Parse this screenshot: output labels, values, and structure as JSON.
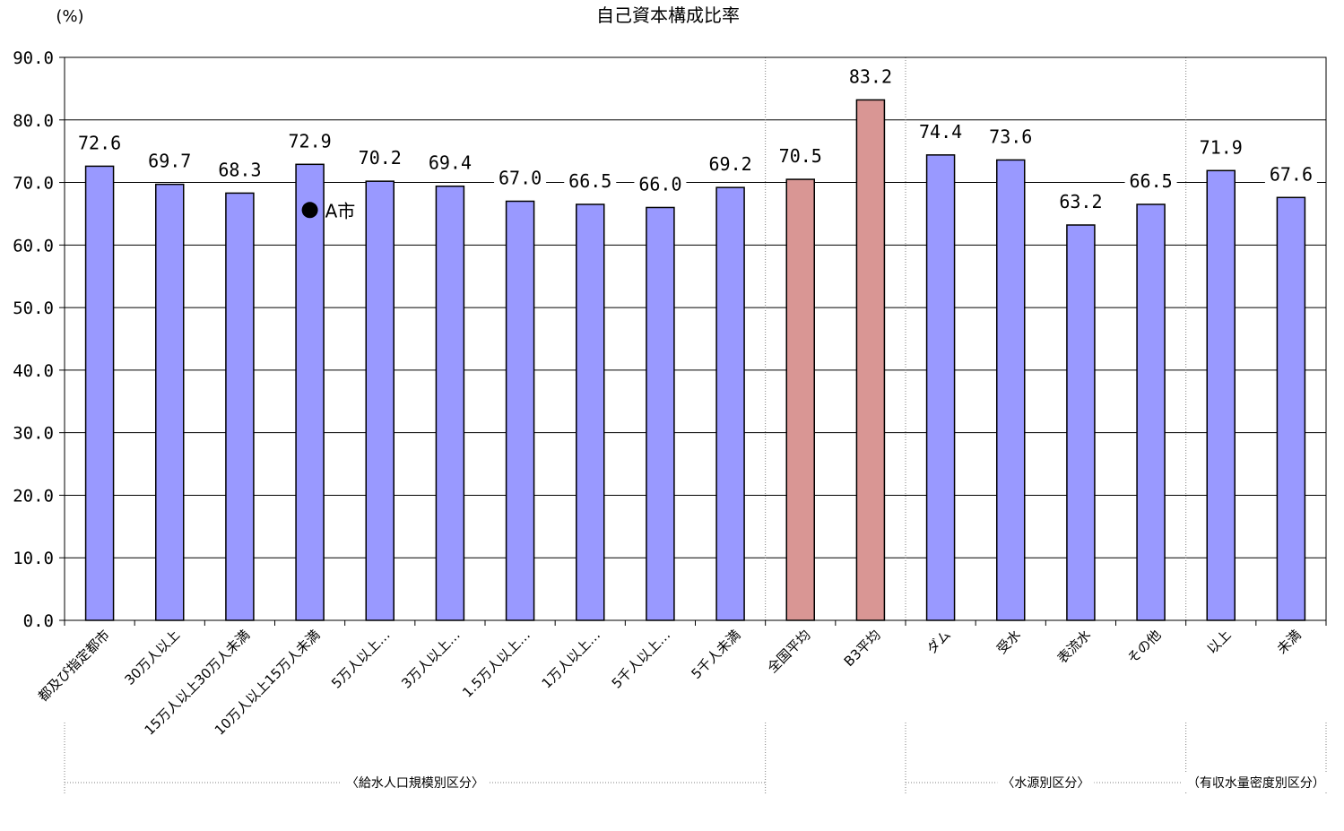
{
  "chart_data": {
    "type": "bar",
    "title": "自己資本構成比率",
    "ylabel": "(%)",
    "ylim": [
      0,
      90
    ],
    "yticks": [
      "0.0",
      "10.0",
      "20.0",
      "30.0",
      "40.0",
      "50.0",
      "60.0",
      "70.0",
      "80.0",
      "90.0"
    ],
    "grid": true,
    "categories": [
      "都及び指定都市",
      "30万人以上",
      "15万人以上30万人未満",
      "10万人以上15万人未満",
      "5万人以上…",
      "3万人以上…",
      "1.5万人以上…",
      "1万人以上…",
      "5千人以上…",
      "5千人未満",
      "全国平均",
      "B3平均",
      "ダム",
      "受水",
      "表流水",
      "その他",
      "以上",
      "未満"
    ],
    "values": [
      72.6,
      69.7,
      68.3,
      72.9,
      70.2,
      69.4,
      67.0,
      66.5,
      66.0,
      69.2,
      70.5,
      83.2,
      74.4,
      73.6,
      63.2,
      66.5,
      71.9,
      67.6
    ],
    "value_labels": [
      "72.6",
      "69.7",
      "68.3",
      "72.9",
      "70.2",
      "69.4",
      "67.0",
      "66.5",
      "66.0",
      "69.2",
      "70.5",
      "83.2",
      "74.4",
      "73.6",
      "63.2",
      "66.5",
      "71.9",
      "67.6"
    ],
    "highlight_indices": [
      10,
      11
    ],
    "groups": [
      {
        "label": "〈給水人口規模別区分〉",
        "start": 0,
        "end": 9
      },
      {
        "label": "〈水源別区分〉",
        "start": 12,
        "end": 15
      },
      {
        "label": "（有収水量密度別区分）",
        "start": 16,
        "end": 17
      }
    ],
    "marker": {
      "label": "A市",
      "value": 65.6,
      "category_index": 3
    },
    "colors": {
      "bar": "#9999ff",
      "highlight": "#d99694",
      "grid": "#000000",
      "separator": "#808080"
    }
  }
}
